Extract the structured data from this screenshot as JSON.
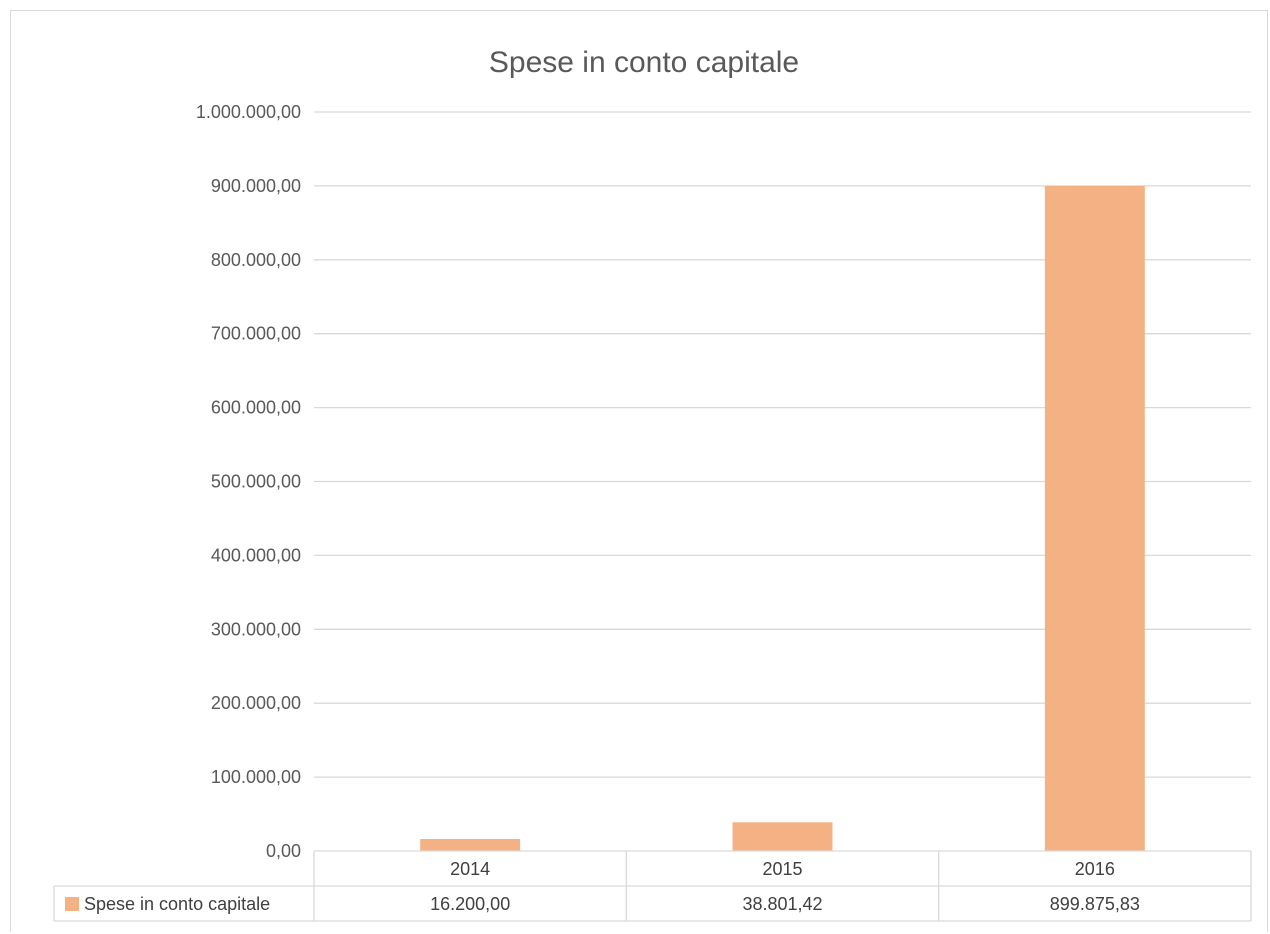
{
  "chart_data": {
    "type": "bar",
    "title": "Spese in conto capitale",
    "categories": [
      "2014",
      "2015",
      "2016"
    ],
    "series": [
      {
        "name": "Spese in conto capitale",
        "values": [
          16200.0,
          38801.42,
          899875.83
        ],
        "value_labels": [
          "16.200,00",
          "38.801,42",
          "899.875,83"
        ],
        "color": "#f4b183"
      }
    ],
    "ylim": [
      0,
      1000000
    ],
    "y_ticks": [
      0,
      100000,
      200000,
      300000,
      400000,
      500000,
      600000,
      700000,
      800000,
      900000,
      1000000
    ],
    "y_tick_labels": [
      "0,00",
      "100.000,00",
      "200.000,00",
      "300.000,00",
      "400.000,00",
      "500.000,00",
      "600.000,00",
      "700.000,00",
      "800.000,00",
      "900.000,00",
      "1.000.000,00"
    ],
    "grid": true,
    "data_table": true,
    "xlabel": "",
    "ylabel": ""
  },
  "colors": {
    "bar": "#f4b183",
    "grid": "#d9d9d9",
    "text": "#595959"
  }
}
